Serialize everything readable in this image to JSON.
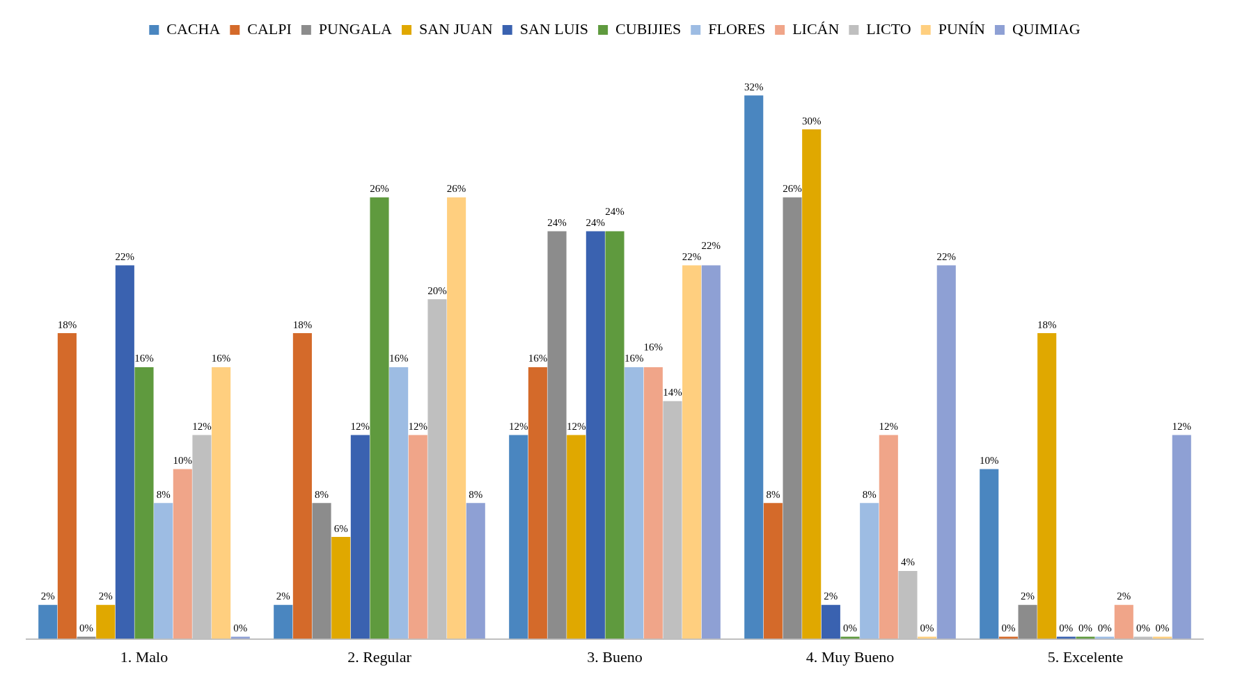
{
  "chart_data": {
    "type": "bar",
    "categories": [
      "1. Malo",
      "2. Regular",
      "3. Bueno",
      "4. Muy Bueno",
      "5. Excelente"
    ],
    "legend": "top",
    "grid": false,
    "tick_labels": "x",
    "series": [
      {
        "name": "CACHA",
        "color": "#4a86c0",
        "values": [
          2,
          2,
          12,
          32,
          10
        ],
        "value_labels": [
          "2%",
          "2%",
          "12%",
          "32%",
          "10%"
        ]
      },
      {
        "name": "CALPI",
        "color": "#d46a2a",
        "values": [
          18,
          18,
          16,
          8,
          0
        ],
        "value_labels": [
          "18%",
          "18%",
          "16%",
          "8%",
          "0%"
        ]
      },
      {
        "name": "PUNGALA",
        "color": "#8c8c8c",
        "values": [
          0,
          8,
          24,
          26,
          2
        ],
        "value_labels": [
          "0%",
          "8%",
          "24%",
          "26%",
          "2%"
        ]
      },
      {
        "name": "SAN JUAN",
        "color": "#e0a800",
        "values": [
          2,
          6,
          12,
          30,
          18
        ],
        "value_labels": [
          "2%",
          "6%",
          "12%",
          "30%",
          "18%"
        ]
      },
      {
        "name": "SAN LUIS",
        "color": "#3a62b0",
        "values": [
          22,
          12,
          24,
          2,
          0
        ],
        "value_labels": [
          "22%",
          "12%",
          "24%",
          "2%",
          "0%"
        ]
      },
      {
        "name": "CUBIJIES",
        "color": "#5f9a3e",
        "values": [
          16,
          26,
          24,
          0,
          0
        ],
        "value_labels": [
          "16%",
          "26%",
          "24%",
          "0%",
          "0%"
        ]
      },
      {
        "name": "FLORES",
        "color": "#9dbce3",
        "values": [
          8,
          16,
          16,
          8,
          0
        ],
        "value_labels": [
          "8%",
          "16%",
          "16%",
          "8%",
          "0%"
        ]
      },
      {
        "name": "LICÁN",
        "color": "#f0a589",
        "values": [
          10,
          12,
          16,
          12,
          2
        ],
        "value_labels": [
          "10%",
          "12%",
          "16%",
          "12%",
          "2%"
        ]
      },
      {
        "name": "LICTO",
        "color": "#bfbfbf",
        "values": [
          12,
          20,
          14,
          4,
          0
        ],
        "value_labels": [
          "12%",
          "20%",
          "14%",
          "4%",
          "0%"
        ]
      },
      {
        "name": "PUNÍN",
        "color": "#ffcf7f",
        "values": [
          16,
          26,
          22,
          0,
          0
        ],
        "value_labels": [
          "16%",
          "26%",
          "22%",
          "0%",
          "0%"
        ]
      },
      {
        "name": "QUIMIAG",
        "color": "#8ea0d4",
        "values": [
          0,
          8,
          22,
          22,
          12
        ],
        "value_labels": [
          "0%",
          "8%",
          "22%",
          "22%",
          "12%"
        ]
      }
    ]
  }
}
